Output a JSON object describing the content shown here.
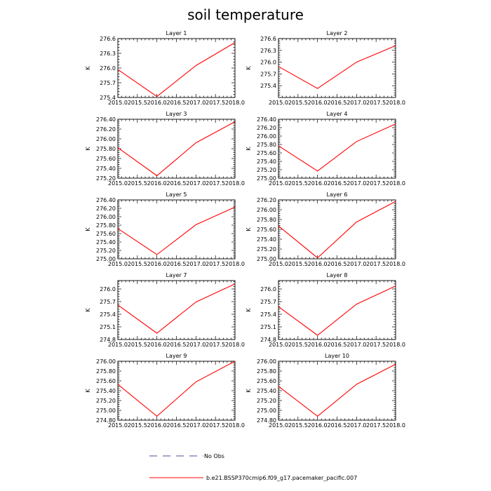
{
  "figure": {
    "title": "soil temperature"
  },
  "legend": {
    "obs_label": "No Obs",
    "model_label": "b.e21.BSSP370cmip6.f09_g17.pacemaker_pacific.007"
  },
  "colors": {
    "series": "#ff0000",
    "obs_dash": "#4b4b9a",
    "axis": "#000000"
  },
  "chart_data": [
    {
      "type": "line",
      "title": "Layer 1",
      "xlabel": "",
      "ylabel": "K",
      "xlim": [
        2015.0,
        2018.0
      ],
      "ylim": [
        275.4,
        276.6
      ],
      "x_ticks": [
        "2015.0",
        "2015.5",
        "2016.0",
        "2016.5",
        "2017.0",
        "2017.5",
        "2018.0"
      ],
      "y_ticks": [
        "275.4",
        "275.7",
        "276.0",
        "276.3",
        "276.6"
      ],
      "series": [
        {
          "name": "b.e21.BSSP370cmip6.f09_g17.pacemaker_pacific.007",
          "x": [
            2015,
            2016,
            2017,
            2018
          ],
          "values": [
            275.97,
            275.42,
            276.05,
            276.52
          ]
        }
      ]
    },
    {
      "type": "line",
      "title": "Layer 2",
      "xlabel": "",
      "ylabel": "K",
      "xlim": [
        2015.0,
        2018.0
      ],
      "ylim": [
        275.1,
        276.6
      ],
      "x_ticks": [
        "2015.0",
        "2015.5",
        "2016.0",
        "2016.5",
        "2017.0",
        "2017.5",
        "2018.0"
      ],
      "y_ticks": [
        "275.4",
        "275.7",
        "276.0",
        "276.3",
        "276.6"
      ],
      "series": [
        {
          "name": "b.e21.BSSP370cmip6.f09_g17.pacemaker_pacific.007",
          "x": [
            2015,
            2016,
            2017,
            2018
          ],
          "values": [
            275.89,
            275.33,
            276.0,
            276.42
          ]
        }
      ]
    },
    {
      "type": "line",
      "title": "Layer 3",
      "xlabel": "",
      "ylabel": "K",
      "xlim": [
        2015.0,
        2018.0
      ],
      "ylim": [
        275.2,
        276.4
      ],
      "x_ticks": [
        "2015.0",
        "2015.5",
        "2016.0",
        "2016.5",
        "2017.0",
        "2017.5",
        "2018.0"
      ],
      "y_ticks": [
        "275.20",
        "275.40",
        "275.60",
        "275.80",
        "276.00",
        "276.20",
        "276.40"
      ],
      "series": [
        {
          "name": "b.e21.BSSP370cmip6.f09_g17.pacemaker_pacific.007",
          "x": [
            2015,
            2016,
            2017,
            2018
          ],
          "values": [
            275.82,
            275.25,
            275.92,
            276.35
          ]
        }
      ]
    },
    {
      "type": "line",
      "title": "Layer 4",
      "xlabel": "",
      "ylabel": "K",
      "xlim": [
        2015.0,
        2018.0
      ],
      "ylim": [
        275.0,
        276.4
      ],
      "x_ticks": [
        "2015.0",
        "2015.5",
        "2016.0",
        "2016.5",
        "2017.0",
        "2017.5",
        "2018.0"
      ],
      "y_ticks": [
        "275.00",
        "275.20",
        "275.40",
        "275.60",
        "275.80",
        "276.00",
        "276.20",
        "276.40"
      ],
      "series": [
        {
          "name": "b.e21.BSSP370cmip6.f09_g17.pacemaker_pacific.007",
          "x": [
            2015,
            2016,
            2017,
            2018
          ],
          "values": [
            275.77,
            275.17,
            275.87,
            276.29
          ]
        }
      ]
    },
    {
      "type": "line",
      "title": "Layer 5",
      "xlabel": "",
      "ylabel": "K",
      "xlim": [
        2015.0,
        2018.0
      ],
      "ylim": [
        275.0,
        276.4
      ],
      "x_ticks": [
        "2015.0",
        "2015.5",
        "2016.0",
        "2016.5",
        "2017.0",
        "2017.5",
        "2018.0"
      ],
      "y_ticks": [
        "275.00",
        "275.20",
        "275.40",
        "275.60",
        "275.80",
        "276.00",
        "276.20",
        "276.40"
      ],
      "series": [
        {
          "name": "b.e21.BSSP370cmip6.f09_g17.pacemaker_pacific.007",
          "x": [
            2015,
            2016,
            2017,
            2018
          ],
          "values": [
            275.72,
            275.1,
            275.81,
            276.23
          ]
        }
      ]
    },
    {
      "type": "line",
      "title": "Layer 6",
      "xlabel": "",
      "ylabel": "K",
      "xlim": [
        2015.0,
        2018.0
      ],
      "ylim": [
        275.0,
        276.2
      ],
      "x_ticks": [
        "2015.0",
        "2015.5",
        "2016.0",
        "2016.5",
        "2017.0",
        "2017.5",
        "2018.0"
      ],
      "y_ticks": [
        "275.00",
        "275.20",
        "275.40",
        "275.60",
        "275.80",
        "276.00",
        "276.20"
      ],
      "series": [
        {
          "name": "b.e21.BSSP370cmip6.f09_g17.pacemaker_pacific.007",
          "x": [
            2015,
            2016,
            2017,
            2018
          ],
          "values": [
            275.67,
            275.02,
            275.75,
            276.17
          ]
        }
      ]
    },
    {
      "type": "line",
      "title": "Layer 7",
      "xlabel": "",
      "ylabel": "K",
      "xlim": [
        2015.0,
        2018.0
      ],
      "ylim": [
        274.8,
        276.2
      ],
      "x_ticks": [
        "2015.0",
        "2015.5",
        "2016.0",
        "2016.5",
        "2017.0",
        "2017.5",
        "2018.0"
      ],
      "y_ticks": [
        "274.8",
        "275.1",
        "275.4",
        "275.7",
        "276.0"
      ],
      "series": [
        {
          "name": "b.e21.BSSP370cmip6.f09_g17.pacemaker_pacific.007",
          "x": [
            2015,
            2016,
            2017,
            2018
          ],
          "values": [
            275.62,
            274.95,
            275.69,
            276.12
          ]
        }
      ]
    },
    {
      "type": "line",
      "title": "Layer 8",
      "xlabel": "",
      "ylabel": "K",
      "xlim": [
        2015.0,
        2018.0
      ],
      "ylim": [
        274.8,
        276.2
      ],
      "x_ticks": [
        "2015.0",
        "2015.5",
        "2016.0",
        "2016.5",
        "2017.0",
        "2017.5",
        "2018.0"
      ],
      "y_ticks": [
        "274.8",
        "275.1",
        "275.4",
        "275.7",
        "276.0"
      ],
      "series": [
        {
          "name": "b.e21.BSSP370cmip6.f09_g17.pacemaker_pacific.007",
          "x": [
            2015,
            2016,
            2017,
            2018
          ],
          "values": [
            275.58,
            274.9,
            275.64,
            276.07
          ]
        }
      ]
    },
    {
      "type": "line",
      "title": "Layer 9",
      "xlabel": "",
      "ylabel": "K",
      "xlim": [
        2015.0,
        2018.0
      ],
      "ylim": [
        274.8,
        276.0
      ],
      "x_ticks": [
        "2015.0",
        "2015.5",
        "2016.0",
        "2016.5",
        "2017.0",
        "2017.5",
        "2018.0"
      ],
      "y_ticks": [
        "274.80",
        "275.00",
        "275.20",
        "275.40",
        "275.60",
        "275.80",
        "276.00"
      ],
      "series": [
        {
          "name": "b.e21.BSSP370cmip6.f09_g17.pacemaker_pacific.007",
          "x": [
            2015,
            2016,
            2017,
            2018
          ],
          "values": [
            275.53,
            274.88,
            275.58,
            276.0
          ]
        }
      ]
    },
    {
      "type": "line",
      "title": "Layer 10",
      "xlabel": "",
      "ylabel": "K",
      "xlim": [
        2015.0,
        2018.0
      ],
      "ylim": [
        274.8,
        276.0
      ],
      "x_ticks": [
        "2015.0",
        "2015.5",
        "2016.0",
        "2016.5",
        "2017.0",
        "2017.5",
        "2018.0"
      ],
      "y_ticks": [
        "274.80",
        "275.00",
        "275.20",
        "275.40",
        "275.60",
        "275.80",
        "276.00"
      ],
      "series": [
        {
          "name": "b.e21.BSSP370cmip6.f09_g17.pacemaker_pacific.007",
          "x": [
            2015,
            2016,
            2017,
            2018
          ],
          "values": [
            275.49,
            274.88,
            275.53,
            275.94
          ]
        }
      ]
    }
  ]
}
